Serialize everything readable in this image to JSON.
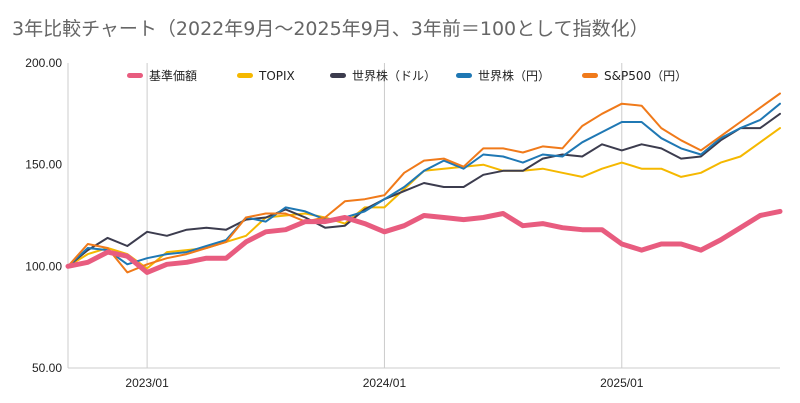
{
  "chart_data": {
    "type": "line",
    "title": "3年比較チャート（2022年9月〜2025年9月、3年前＝100として指数化）",
    "xlabel": "",
    "ylabel": "",
    "ylim": [
      50,
      200
    ],
    "yticks": [
      "50.00",
      "100.00",
      "150.00",
      "200.00"
    ],
    "xticks": [
      {
        "label": "2023/01",
        "month_index": 4
      },
      {
        "label": "2024/01",
        "month_index": 16
      },
      {
        "label": "2025/01",
        "month_index": 28
      }
    ],
    "x_start": "2022/09",
    "x_end": "2025/09",
    "grid": "vertical",
    "legend_position": "top",
    "series": [
      {
        "name": "基準価額",
        "color": "#e85c7f",
        "width": 5,
        "values": [
          100,
          102,
          107,
          105,
          97,
          101,
          102,
          104,
          104,
          112,
          117,
          118,
          122,
          122,
          124,
          121,
          117,
          120,
          125,
          124,
          123,
          124,
          126,
          120,
          121,
          119,
          118,
          118,
          111,
          108,
          111,
          111,
          108,
          113,
          119,
          125,
          127
        ]
      },
      {
        "name": "TOPIX",
        "color": "#f5b800",
        "width": 2,
        "values": [
          100,
          106,
          109,
          106,
          99,
          107,
          108,
          109,
          112,
          115,
          124,
          125,
          126,
          124,
          121,
          129,
          129,
          138,
          147,
          148,
          149,
          150,
          147,
          147,
          148,
          146,
          144,
          148,
          151,
          148,
          148,
          144,
          146,
          151,
          154,
          161,
          168
        ]
      },
      {
        "name": "世界株（ドル）",
        "color": "#3c3c4e",
        "width": 2,
        "values": [
          100,
          108,
          114,
          110,
          117,
          115,
          118,
          119,
          118,
          123,
          124,
          128,
          124,
          119,
          120,
          128,
          133,
          137,
          141,
          139,
          139,
          145,
          147,
          147,
          153,
          155,
          154,
          160,
          157,
          160,
          158,
          153,
          154,
          162,
          168,
          168,
          175
        ]
      },
      {
        "name": "世界株（円）",
        "color": "#1f78b4",
        "width": 2,
        "values": [
          100,
          109,
          108,
          101,
          104,
          106,
          107,
          110,
          113,
          124,
          122,
          129,
          127,
          123,
          124,
          127,
          133,
          139,
          147,
          152,
          148,
          155,
          154,
          151,
          155,
          154,
          161,
          166,
          171,
          171,
          163,
          158,
          155,
          163,
          168,
          172,
          180
        ]
      },
      {
        "name": "S&P500（円）",
        "color": "#f07a1a",
        "width": 2,
        "values": [
          100,
          111,
          109,
          97,
          101,
          104,
          106,
          109,
          112,
          124,
          126,
          126,
          122,
          124,
          132,
          133,
          135,
          146,
          152,
          153,
          149,
          158,
          158,
          156,
          159,
          158,
          169,
          175,
          180,
          179,
          168,
          162,
          157,
          164,
          171,
          178,
          185
        ]
      }
    ]
  }
}
